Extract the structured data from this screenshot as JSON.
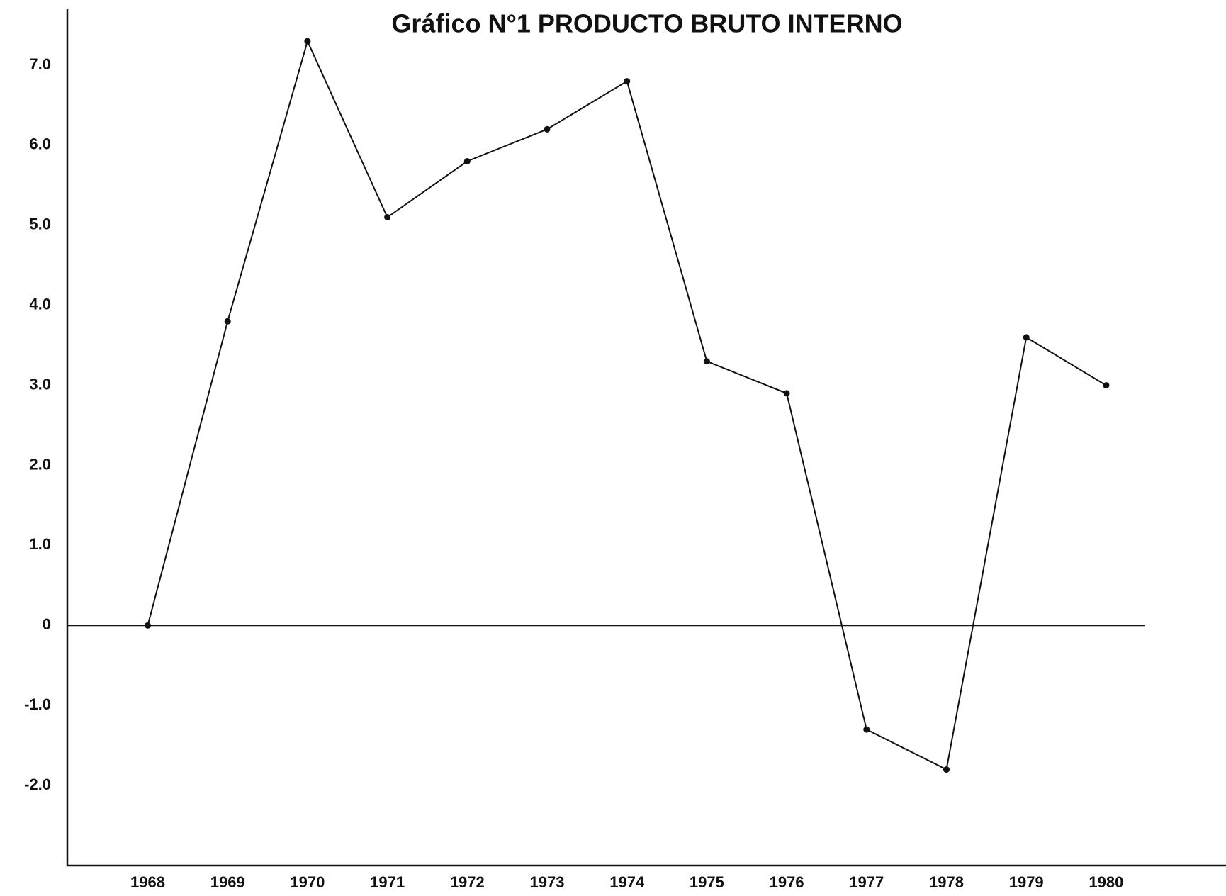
{
  "chart_data": {
    "type": "line",
    "title": "Gráfico N°1 PRODUCTO BRUTO INTERNO",
    "categories": [
      "1968",
      "1969",
      "1970",
      "1971",
      "1972",
      "1973",
      "1974",
      "1975",
      "1976",
      "1977",
      "1978",
      "1979",
      "1980"
    ],
    "values": [
      0,
      3.8,
      7.3,
      5.1,
      5.8,
      6.2,
      6.8,
      3.3,
      2.9,
      -1.3,
      -1.8,
      3.6,
      3.0
    ],
    "color": "#111111",
    "ylim": [
      -3.0,
      7.7
    ],
    "yticks": [
      {
        "value": -2,
        "label": "-2.0"
      },
      {
        "value": -1,
        "label": "-1.0"
      },
      0,
      {
        "value": 1,
        "label": "1.0"
      },
      {
        "value": 2,
        "label": "2.0"
      },
      {
        "value": 3,
        "label": "3.0"
      },
      {
        "value": 4,
        "label": "4.0"
      },
      {
        "value": 5,
        "label": "5.0"
      },
      {
        "value": 6,
        "label": "6.0"
      },
      {
        "value": 7,
        "label": "7.0"
      }
    ],
    "zero_line": true,
    "grid": false,
    "markers": true
  }
}
